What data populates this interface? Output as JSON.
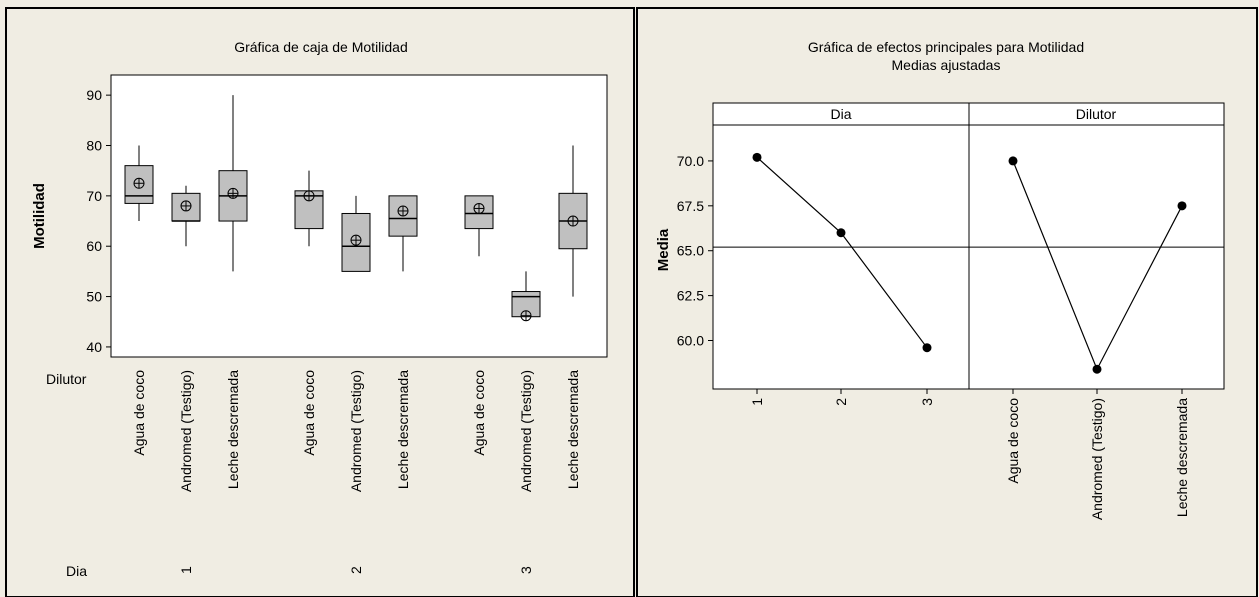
{
  "colors": {
    "background": "#f0ede3",
    "plot_area": "#ffffff",
    "box_fill": "#c0c0c0",
    "ink": "#000000"
  },
  "chart_data": [
    {
      "type": "boxplot",
      "title": "Gráfica de caja de Motilidad",
      "ylabel": "Motilidad",
      "ylim": [
        38,
        94
      ],
      "yticks": [
        40,
        50,
        60,
        70,
        80,
        90
      ],
      "grid": false,
      "x_factor_labels": [
        "Dilutor",
        "Dia"
      ],
      "groups": [
        {
          "dia": "1",
          "dilutor": "Agua de coco",
          "min": 65,
          "q1": 68.5,
          "median": 70,
          "q3": 76,
          "max": 80,
          "mean": 72.5
        },
        {
          "dia": "1",
          "dilutor": "Andromed (Testigo)",
          "min": 60,
          "q1": 65,
          "median": 65,
          "q3": 70.5,
          "max": 72,
          "mean": 68
        },
        {
          "dia": "1",
          "dilutor": "Leche descremada",
          "min": 55,
          "q1": 65,
          "median": 70,
          "q3": 75,
          "max": 90,
          "mean": 70.5
        },
        {
          "dia": "2",
          "dilutor": "Agua de coco",
          "min": 60,
          "q1": 63.5,
          "median": 70,
          "q3": 71,
          "max": 75,
          "mean": 70
        },
        {
          "dia": "2",
          "dilutor": "Andromed (Testigo)",
          "min": 55,
          "q1": 55,
          "median": 60,
          "q3": 66.5,
          "max": 70,
          "mean": 61.2
        },
        {
          "dia": "2",
          "dilutor": "Leche descremada",
          "min": 55,
          "q1": 62,
          "median": 65.5,
          "q3": 70,
          "max": 70,
          "mean": 67
        },
        {
          "dia": "3",
          "dilutor": "Agua de coco",
          "min": 58,
          "q1": 63.5,
          "median": 66.5,
          "q3": 70,
          "max": 70,
          "mean": 67.5
        },
        {
          "dia": "3",
          "dilutor": "Andromed (Testigo)",
          "min": 46,
          "q1": 46,
          "median": 50,
          "q3": 51,
          "max": 55,
          "mean": 46.2
        },
        {
          "dia": "3",
          "dilutor": "Leche descremada",
          "min": 50,
          "q1": 59.5,
          "median": 65,
          "q3": 70.5,
          "max": 80,
          "mean": 65
        }
      ]
    },
    {
      "type": "line",
      "title": "Gráfica de efectos principales para Motilidad",
      "subtitle": "Medias ajustadas",
      "ylabel": "Media",
      "ylim": [
        57.3,
        72.0
      ],
      "yticks": [
        "60.0",
        "62.5",
        "65.0",
        "67.5",
        "70.0"
      ],
      "grid": false,
      "reference_line": 65.2,
      "panels": [
        {
          "name": "Dia",
          "categories": [
            "1",
            "2",
            "3"
          ],
          "values": [
            70.2,
            66.0,
            59.6
          ]
        },
        {
          "name": "Dilutor",
          "categories": [
            "Agua de coco",
            "Andromed (Testigo)",
            "Leche descremada"
          ],
          "values": [
            70.0,
            58.4,
            67.5
          ]
        }
      ]
    }
  ]
}
